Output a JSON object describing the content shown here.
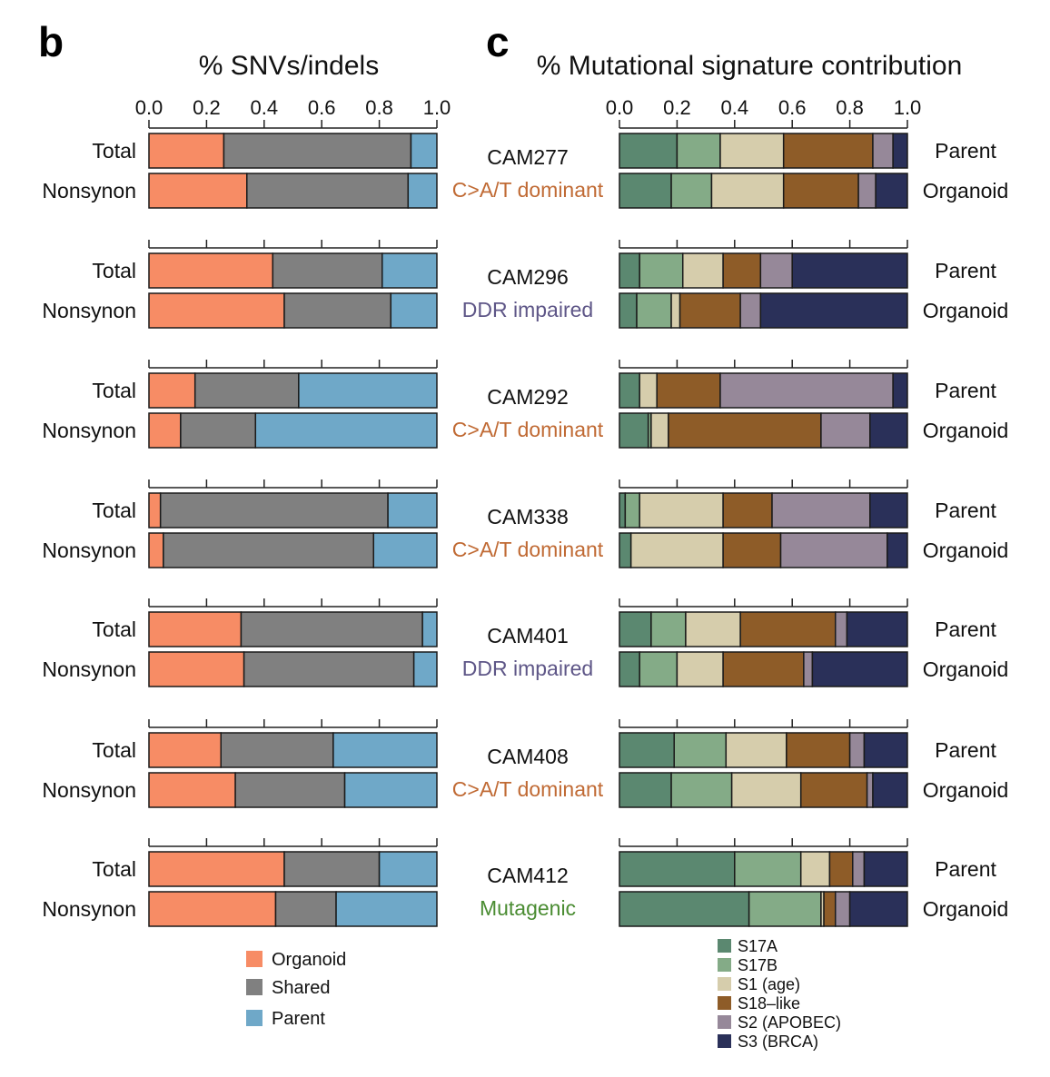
{
  "panel_b_letter": "b",
  "panel_c_letter": "c",
  "chart_data": [
    {
      "type": "bar",
      "orientation": "horizontal-stacked",
      "panel": "b",
      "title": "% SNVs/indels",
      "xlim": [
        0,
        1
      ],
      "xticks": [
        "0.0",
        "0.2",
        "0.4",
        "0.6",
        "0.8",
        "1.0"
      ],
      "xtick_values": [
        0,
        0.2,
        0.4,
        0.6,
        0.8,
        1.0
      ],
      "series_names": [
        "Organoid",
        "Shared",
        "Parent"
      ],
      "colors": [
        "#f78c65",
        "#808080",
        "#6fa8c8"
      ],
      "row_labels": [
        "Total",
        "Nonsynon"
      ],
      "groups": [
        {
          "sample": "CAM277",
          "rows": [
            [
              0.26,
              0.65,
              0.09
            ],
            [
              0.34,
              0.56,
              0.1
            ]
          ]
        },
        {
          "sample": "CAM296",
          "rows": [
            [
              0.43,
              0.38,
              0.19
            ],
            [
              0.47,
              0.37,
              0.16
            ]
          ]
        },
        {
          "sample": "CAM292",
          "rows": [
            [
              0.16,
              0.36,
              0.48
            ],
            [
              0.11,
              0.26,
              0.63
            ]
          ]
        },
        {
          "sample": "CAM338",
          "rows": [
            [
              0.04,
              0.79,
              0.17
            ],
            [
              0.05,
              0.73,
              0.22
            ]
          ]
        },
        {
          "sample": "CAM401",
          "rows": [
            [
              0.32,
              0.63,
              0.05
            ],
            [
              0.33,
              0.59,
              0.08
            ]
          ]
        },
        {
          "sample": "CAM408",
          "rows": [
            [
              0.25,
              0.39,
              0.36
            ],
            [
              0.3,
              0.38,
              0.32
            ]
          ]
        },
        {
          "sample": "CAM412",
          "rows": [
            [
              0.47,
              0.33,
              0.2
            ],
            [
              0.44,
              0.21,
              0.35
            ]
          ]
        }
      ],
      "legend": [
        "Organoid",
        "Shared",
        "Parent"
      ],
      "legend_position": "bottom"
    },
    {
      "type": "bar",
      "orientation": "horizontal-stacked",
      "panel": "c",
      "title": "% Mutational signature contribution",
      "xlim": [
        0,
        1
      ],
      "xticks": [
        "0.0",
        "0.2",
        "0.4",
        "0.6",
        "0.8",
        "1.0"
      ],
      "xtick_values": [
        0,
        0.2,
        0.4,
        0.6,
        0.8,
        1.0
      ],
      "series_names": [
        "S17A",
        "S17B",
        "S1 (age)",
        "S18–like",
        "S2 (APOBEC)",
        "S3 (BRCA)"
      ],
      "colors": [
        "#5b8870",
        "#84ab87",
        "#d6cdac",
        "#8e5c28",
        "#968899",
        "#2a3059"
      ],
      "row_labels": [
        "Parent",
        "Organoid"
      ],
      "groups": [
        {
          "sample": "CAM277",
          "class": "C>A/T dominant",
          "class_color": "#c06a34",
          "rows": [
            [
              0.2,
              0.15,
              0.22,
              0.31,
              0.07,
              0.05
            ],
            [
              0.18,
              0.14,
              0.25,
              0.26,
              0.06,
              0.11
            ]
          ]
        },
        {
          "sample": "CAM296",
          "class": "DDR impaired",
          "class_color": "#5e5687",
          "rows": [
            [
              0.07,
              0.15,
              0.14,
              0.13,
              0.11,
              0.4
            ],
            [
              0.06,
              0.12,
              0.03,
              0.21,
              0.07,
              0.51
            ]
          ]
        },
        {
          "sample": "CAM292",
          "class": "C>A/T dominant",
          "class_color": "#c06a34",
          "rows": [
            [
              0.07,
              0.0,
              0.06,
              0.22,
              0.6,
              0.05
            ],
            [
              0.1,
              0.01,
              0.06,
              0.53,
              0.17,
              0.13
            ]
          ]
        },
        {
          "sample": "CAM338",
          "class": "C>A/T dominant",
          "class_color": "#c06a34",
          "rows": [
            [
              0.02,
              0.05,
              0.29,
              0.17,
              0.34,
              0.13
            ],
            [
              0.04,
              0.0,
              0.32,
              0.2,
              0.37,
              0.07
            ]
          ]
        },
        {
          "sample": "CAM401",
          "class": "DDR impaired",
          "class_color": "#5e5687",
          "rows": [
            [
              0.11,
              0.12,
              0.19,
              0.33,
              0.04,
              0.21
            ],
            [
              0.07,
              0.13,
              0.16,
              0.28,
              0.03,
              0.33
            ]
          ]
        },
        {
          "sample": "CAM408",
          "class": "C>A/T dominant",
          "class_color": "#c06a34",
          "rows": [
            [
              0.19,
              0.18,
              0.21,
              0.22,
              0.05,
              0.15
            ],
            [
              0.18,
              0.21,
              0.24,
              0.23,
              0.02,
              0.12
            ]
          ]
        },
        {
          "sample": "CAM412",
          "class": "Mutagenic",
          "class_color": "#4a8c32",
          "rows": [
            [
              0.4,
              0.23,
              0.1,
              0.08,
              0.04,
              0.15
            ],
            [
              0.45,
              0.25,
              0.01,
              0.04,
              0.05,
              0.2
            ]
          ]
        }
      ],
      "legend": [
        "S17A",
        "S17B",
        "S1 (age)",
        "S18–like",
        "S2 (APOBEC)",
        "S3 (BRCA)"
      ],
      "legend_position": "bottom"
    }
  ]
}
